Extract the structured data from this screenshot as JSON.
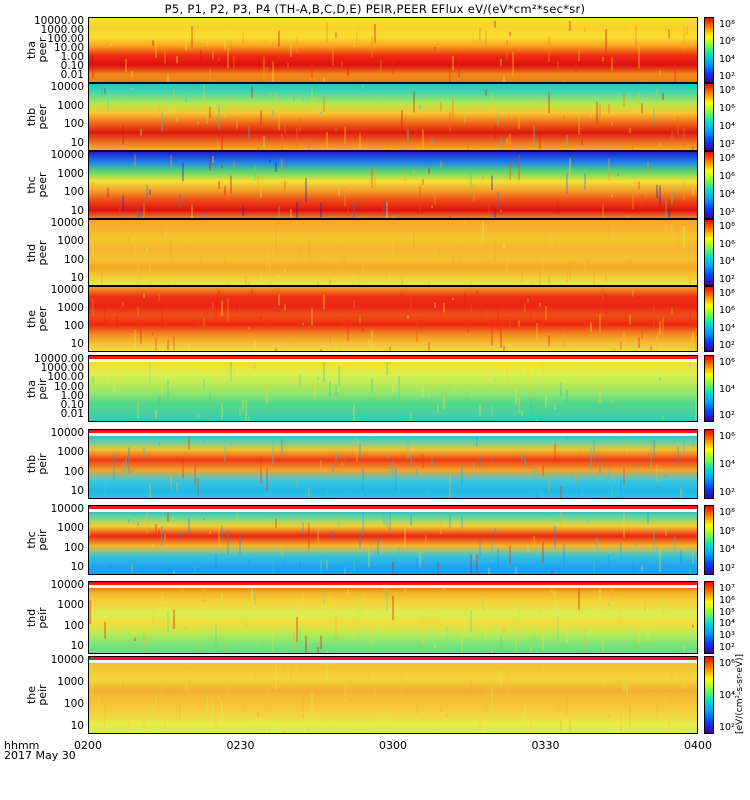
{
  "chart_data": {
    "type": "heatmap",
    "title": "P5, P1, P2, P3, P4 (TH-A,B,C,D,E) PEIR,PEER EFlux eV/(eV*cm²*sec*sr)",
    "x_axis": {
      "label_line1": "hhmm",
      "label_line2": "2017 May 30",
      "ticks": [
        "0200",
        "0230",
        "0300",
        "0330",
        "0400"
      ],
      "range": [
        "0200",
        "0400"
      ]
    },
    "colorbar_unit": "[eV/(cm²-s-sr-eV)]",
    "panels": [
      {
        "probe": "tha",
        "species": "peer",
        "yscale": "log",
        "ticks": [
          "10000.00",
          "1000.00",
          "100.00",
          "10.00",
          "1.00",
          "0.10",
          "0.01"
        ],
        "cbar": [
          "10⁸",
          "10⁶",
          "10⁴",
          "10²"
        ]
      },
      {
        "probe": "thb",
        "species": "peer",
        "yscale": "log",
        "ticks": [
          "10000",
          "1000",
          "100",
          "10"
        ],
        "cbar": [
          "10⁸",
          "10⁶",
          "10⁴",
          "10²"
        ]
      },
      {
        "probe": "thc",
        "species": "peer",
        "yscale": "log",
        "ticks": [
          "10000",
          "1000",
          "100",
          "10"
        ],
        "cbar": [
          "10⁸",
          "10⁶",
          "10⁴",
          "10²"
        ]
      },
      {
        "probe": "thd",
        "species": "peer",
        "yscale": "log",
        "ticks": [
          "10000",
          "1000",
          "100",
          "10"
        ],
        "cbar": [
          "10⁸",
          "10⁶",
          "10⁴",
          "10²"
        ]
      },
      {
        "probe": "the",
        "species": "peer",
        "yscale": "log",
        "ticks": [
          "10000",
          "1000",
          "100",
          "10"
        ],
        "cbar": [
          "10⁸",
          "10⁶",
          "10⁴",
          "10²"
        ]
      },
      {
        "probe": "tha",
        "species": "peir",
        "yscale": "log",
        "ticks": [
          "10000.00",
          "1000.00",
          "100.00",
          "10.00",
          "1.00",
          "0.10",
          "0.01"
        ],
        "cbar": [
          "10⁶",
          "10⁴",
          "10²"
        ]
      },
      {
        "probe": "thb",
        "species": "peir",
        "yscale": "log",
        "ticks": [
          "10000",
          "1000",
          "100",
          "10"
        ],
        "cbar": [
          "10⁶",
          "10⁴",
          "10²"
        ]
      },
      {
        "probe": "thc",
        "species": "peir",
        "yscale": "log",
        "ticks": [
          "10000",
          "1000",
          "100",
          "10"
        ],
        "cbar": [
          "10⁸",
          "10⁶",
          "10⁴",
          "10²"
        ]
      },
      {
        "probe": "thd",
        "species": "peir",
        "yscale": "log",
        "ticks": [
          "10000",
          "1000",
          "100",
          "10"
        ],
        "cbar": [
          "10⁷",
          "10⁶",
          "10⁵",
          "10⁴",
          "10³",
          "10²"
        ]
      },
      {
        "probe": "the",
        "species": "peir",
        "yscale": "log",
        "ticks": [
          "10000",
          "1000",
          "100",
          "10"
        ],
        "cbar": [
          "10⁶",
          "10⁴",
          "10²"
        ]
      }
    ]
  }
}
